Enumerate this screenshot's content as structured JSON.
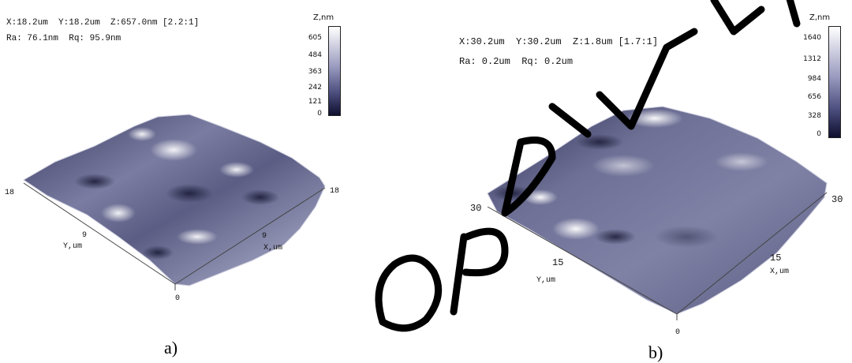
{
  "panels": [
    {
      "readout_line1": "X:18.2um  Y:18.2um  Z:657.0nm [2.2:1]",
      "readout_line2": "Ra: 76.1nm  Rq: 95.9nm",
      "colorbar": {
        "unit": "Z,nm",
        "ticks": [
          "605",
          "484",
          "363",
          "242",
          "121",
          "0"
        ]
      },
      "axes": {
        "y_label": "Y,um",
        "x_label": "X,um",
        "y_max": "18",
        "y_mid": "9",
        "x_max": "18",
        "x_mid": "9",
        "origin": "0"
      },
      "caption": "a)"
    },
    {
      "readout_line1": "X:30.2um  Y:30.2um  Z:1.8um [1.7:1]",
      "readout_line2": "Ra: 0.2um  Rq: 0.2um",
      "colorbar": {
        "unit": "Z,nm",
        "ticks": [
          "1640",
          "1312",
          "984",
          "656",
          "328",
          "0"
        ]
      },
      "axes": {
        "y_label": "Y,um",
        "x_label": "X,um",
        "y_max": "30",
        "y_mid": "15",
        "x_max": "30",
        "x_mid": "15",
        "origin": "0"
      },
      "caption": "b)"
    }
  ],
  "colors": {
    "surface_dark": "#2e2f52",
    "surface_mid": "#6e7096",
    "surface_light": "#d7d8e6",
    "watermark": "#000000"
  }
}
